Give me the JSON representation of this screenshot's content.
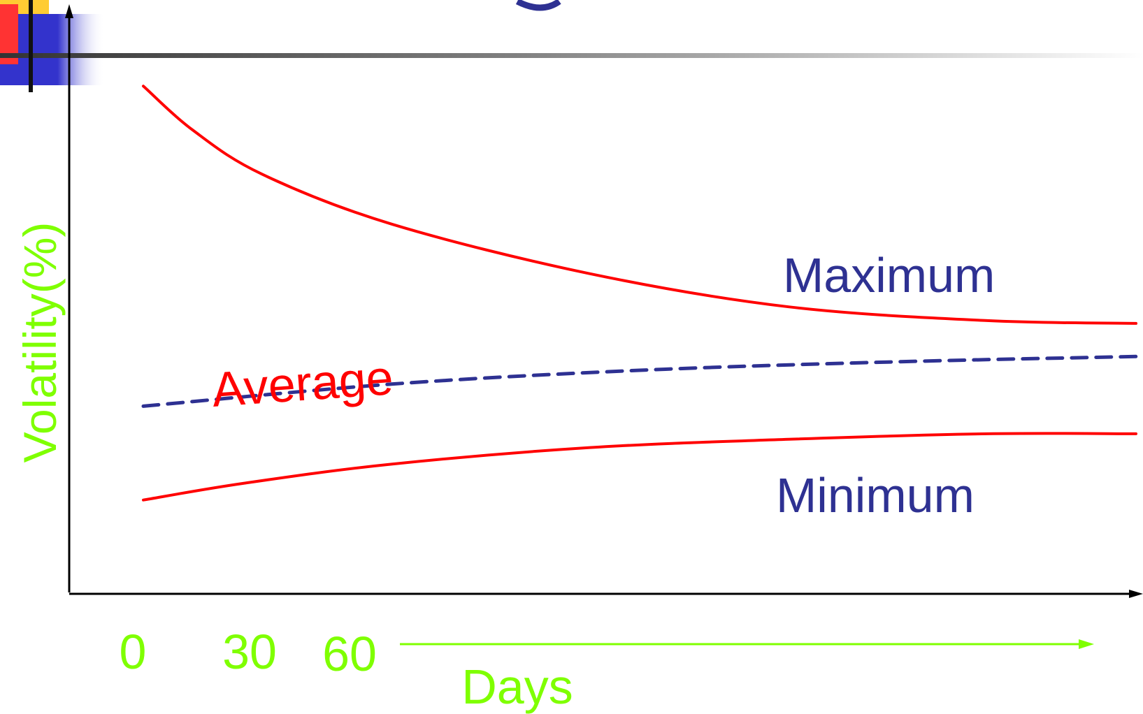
{
  "colors": {
    "curve": "#ff0000",
    "average_line": "#2e3192",
    "curve_label": "#2e3192",
    "axis_text": "#7fff00",
    "axis": "#000000",
    "average_label": "#ff0000"
  },
  "chart_data": {
    "type": "line",
    "title": "",
    "xlabel": "Days",
    "ylabel": "Volatility(%)",
    "x_ticks": [
      "0",
      "30",
      "60"
    ],
    "series": [
      {
        "name": "Maximum",
        "style": "solid",
        "color": "#ff0000",
        "points": [
          [
            0,
            0.92
          ],
          [
            0.05,
            0.84
          ],
          [
            0.12,
            0.76
          ],
          [
            0.25,
            0.67
          ],
          [
            0.45,
            0.58
          ],
          [
            0.65,
            0.52
          ],
          [
            0.85,
            0.495
          ],
          [
            1,
            0.49
          ]
        ]
      },
      {
        "name": "Average",
        "style": "dashed",
        "color": "#2e3192",
        "points": [
          [
            0,
            0.34
          ],
          [
            0.25,
            0.38
          ],
          [
            0.5,
            0.405
          ],
          [
            0.75,
            0.42
          ],
          [
            1,
            0.43
          ]
        ]
      },
      {
        "name": "Minimum",
        "style": "solid",
        "color": "#ff0000",
        "points": [
          [
            0,
            0.17
          ],
          [
            0.1,
            0.2
          ],
          [
            0.25,
            0.235
          ],
          [
            0.45,
            0.265
          ],
          [
            0.65,
            0.28
          ],
          [
            0.85,
            0.29
          ],
          [
            1,
            0.29
          ]
        ]
      }
    ]
  }
}
